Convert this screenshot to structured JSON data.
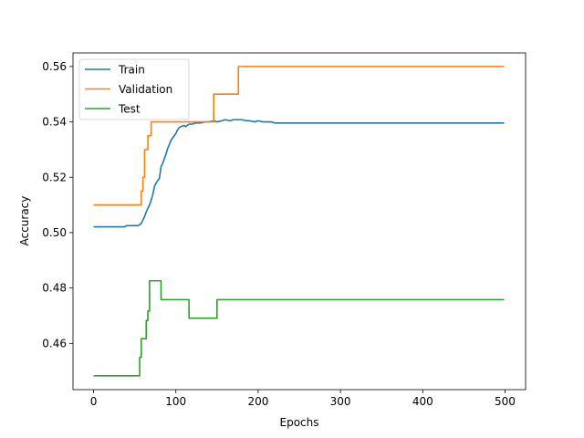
{
  "chart_data": {
    "type": "line",
    "title": "",
    "xlabel": "Epochs",
    "ylabel": "Accuracy",
    "xlim": [
      -25,
      525
    ],
    "ylim": [
      0.4433,
      0.5649
    ],
    "xticks": [
      0,
      100,
      200,
      300,
      400,
      500
    ],
    "yticks": [
      0.46,
      0.48,
      0.5,
      0.52,
      0.54,
      0.56
    ],
    "ytick_labels": [
      "0.46",
      "0.48",
      "0.50",
      "0.52",
      "0.54",
      "0.56"
    ],
    "grid": false,
    "legend_position": "top-left",
    "series": [
      {
        "name": "Train",
        "color": "#1f77b4",
        "x": [
          0,
          38,
          40,
          54,
          58,
          60,
          62,
          64,
          66,
          68,
          70,
          72,
          74,
          76,
          78,
          80,
          82,
          84,
          86,
          88,
          90,
          92,
          94,
          96,
          98,
          100,
          102,
          104,
          106,
          110,
          112,
          116,
          120,
          124,
          130,
          136,
          140,
          146,
          150,
          156,
          160,
          166,
          170,
          176,
          180,
          186,
          190,
          196,
          200,
          206,
          210,
          216,
          220,
          499
        ],
        "y": [
          0.5021,
          0.5021,
          0.5025,
          0.5025,
          0.5033,
          0.5046,
          0.5058,
          0.5075,
          0.5088,
          0.51,
          0.5117,
          0.5138,
          0.5167,
          0.5179,
          0.5188,
          0.5196,
          0.5238,
          0.525,
          0.5267,
          0.5283,
          0.5304,
          0.5317,
          0.5333,
          0.5342,
          0.535,
          0.5358,
          0.5371,
          0.5379,
          0.5383,
          0.5387,
          0.5383,
          0.5392,
          0.5392,
          0.5396,
          0.5396,
          0.54,
          0.54,
          0.5404,
          0.54,
          0.5404,
          0.5408,
          0.5404,
          0.5408,
          0.5408,
          0.5408,
          0.5404,
          0.5404,
          0.54,
          0.5404,
          0.54,
          0.54,
          0.54,
          0.5396,
          0.5396
        ]
      },
      {
        "name": "Validation",
        "color": "#ff7f0e",
        "x": [
          0,
          58,
          58,
          60,
          60,
          62,
          62,
          66,
          66,
          70,
          70,
          146,
          146,
          176,
          176,
          499
        ],
        "y": [
          0.51,
          0.51,
          0.515,
          0.515,
          0.52,
          0.52,
          0.53,
          0.53,
          0.535,
          0.535,
          0.54,
          0.54,
          0.55,
          0.55,
          0.56,
          0.56
        ],
        "step": true
      },
      {
        "name": "Test",
        "color": "#2ca02c",
        "x": [
          0,
          56,
          56,
          58,
          58,
          62,
          62,
          64,
          64,
          66,
          66,
          68,
          68,
          82,
          82,
          116,
          116,
          150,
          150,
          499
        ],
        "y": [
          0.4483,
          0.4483,
          0.455,
          0.455,
          0.4617,
          0.4617,
          0.4617,
          0.4617,
          0.4683,
          0.4683,
          0.4717,
          0.4717,
          0.4826,
          0.4826,
          0.4758,
          0.4758,
          0.4691,
          0.4691,
          0.4758,
          0.4758
        ],
        "step": true
      }
    ]
  }
}
